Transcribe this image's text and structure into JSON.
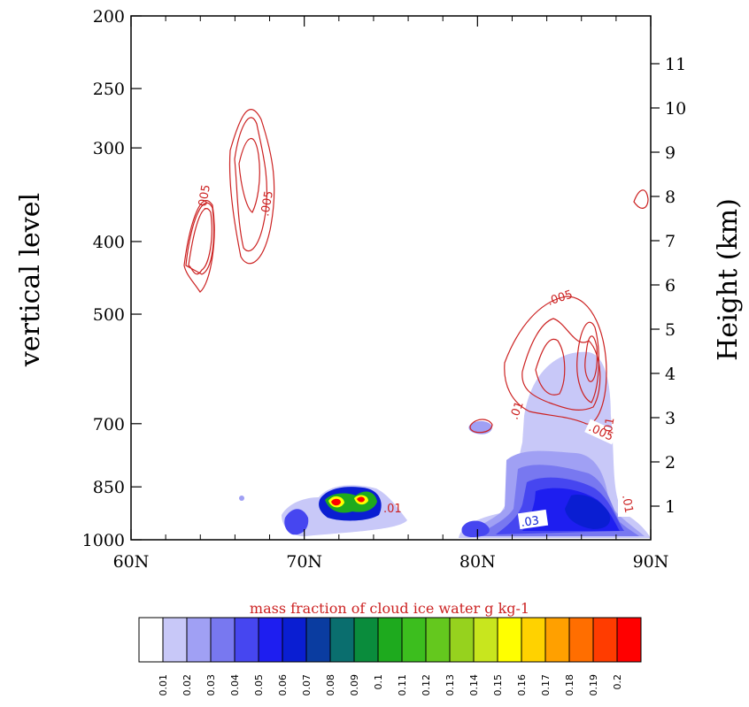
{
  "chart_data": {
    "type": "heatmap",
    "xlabel": "",
    "ylabel_left": "vertical level",
    "ylabel_right": "Height (km)",
    "x_ticks": [
      "60N",
      "70N",
      "80N",
      "90N"
    ],
    "xlim": [
      60,
      90
    ],
    "y_left_ticks": [
      "200",
      "250",
      "300",
      "400",
      "500",
      "700",
      "850",
      "1000"
    ],
    "y_left_values": [
      200,
      250,
      300,
      400,
      500,
      700,
      850,
      1000
    ],
    "y_left_scale": "log-pressure",
    "y_right_ticks": [
      "1",
      "2",
      "3",
      "4",
      "5",
      "6",
      "7",
      "8",
      "9",
      "10",
      "11"
    ],
    "colorbar": {
      "title": "mass fraction of cloud ice water g kg-1",
      "title_color": "#cc2222",
      "labels": [
        "0.01",
        "0.02",
        "0.03",
        "0.04",
        "0.05",
        "0.06",
        "0.07",
        "0.08",
        "0.09",
        "0.1",
        "0.11",
        "0.12",
        "0.13",
        "0.14",
        "0.15",
        "0.16",
        "0.17",
        "0.18",
        "0.19",
        "0.2"
      ],
      "colors": [
        "#ffffff",
        "#c8c8f8",
        "#a0a0f4",
        "#7878f0",
        "#4646f0",
        "#1e1ef0",
        "#0a1ed2",
        "#0a3ca0",
        "#0a6e6e",
        "#0a8c3c",
        "#1eaa1e",
        "#3cbe1e",
        "#64c81e",
        "#96d21e",
        "#c8e61e",
        "#ffff00",
        "#ffd200",
        "#ffa000",
        "#ff6e00",
        "#ff3c00",
        "#ff0000"
      ]
    },
    "contour_labels": [
      ".005",
      ".005",
      ".005",
      ".005",
      ".01",
      ".01",
      ".01",
      ".01",
      ".03"
    ],
    "contour_color": "#cc2222",
    "grid": false
  }
}
